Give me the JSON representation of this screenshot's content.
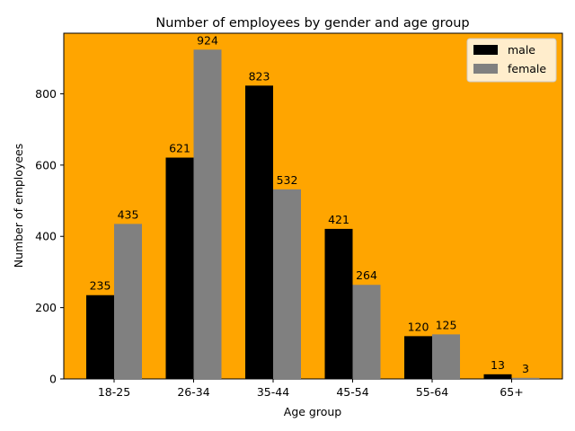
{
  "chart_data": {
    "type": "bar",
    "title": "Number of employees by gender and age group",
    "xlabel": "Age group",
    "ylabel": "Number of employees",
    "categories": [
      "18-25",
      "26-34",
      "35-44",
      "45-54",
      "55-64",
      "65+"
    ],
    "series": [
      {
        "name": "male",
        "values": [
          235,
          621,
          823,
          421,
          120,
          13
        ],
        "color": "#000000"
      },
      {
        "name": "female",
        "values": [
          435,
          924,
          532,
          264,
          125,
          3
        ],
        "color": "#808080"
      }
    ],
    "ylim": [
      0,
      970
    ],
    "yticks": [
      0,
      200,
      400,
      600,
      800
    ],
    "grid": false,
    "legend_position": "top-right",
    "plot_background": "#ffa500",
    "data_labels": true
  }
}
